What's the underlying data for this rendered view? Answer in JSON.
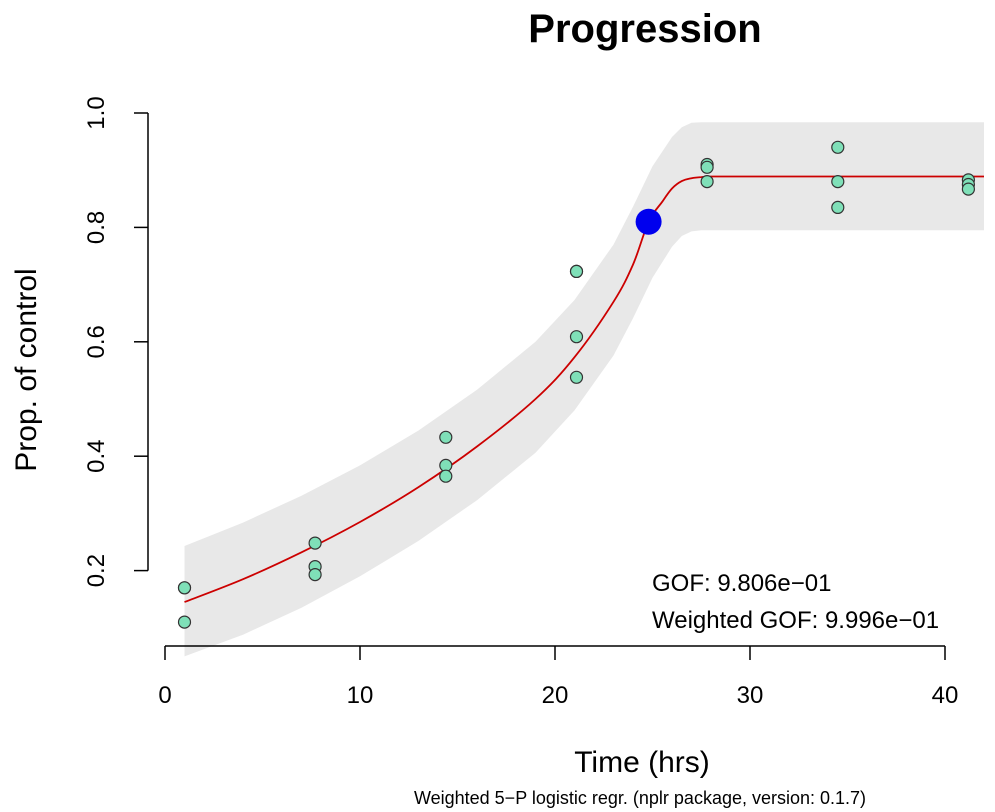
{
  "chart_data": {
    "type": "scatter",
    "title": "Progression",
    "xlabel": "Time (hrs)",
    "ylabel": "Prop. of control",
    "subtitle": "Weighted 5−P logistic regr. (nplr package, version: 0.1.7)",
    "xlim": [
      0,
      42
    ],
    "ylim": [
      0.08,
      1.0
    ],
    "x_ticks": [
      "0",
      "10",
      "20",
      "30",
      "40"
    ],
    "y_ticks": [
      "0.2",
      "0.4",
      "0.6",
      "0.8",
      "1.0"
    ],
    "grid": false,
    "points": [
      {
        "x": 1.0,
        "y": 0.17
      },
      {
        "x": 1.0,
        "y": 0.17
      },
      {
        "x": 1.0,
        "y": 0.11
      },
      {
        "x": 7.7,
        "y": 0.248
      },
      {
        "x": 7.7,
        "y": 0.207
      },
      {
        "x": 7.7,
        "y": 0.193
      },
      {
        "x": 14.4,
        "y": 0.433
      },
      {
        "x": 14.4,
        "y": 0.384
      },
      {
        "x": 14.4,
        "y": 0.365
      },
      {
        "x": 21.1,
        "y": 0.723
      },
      {
        "x": 21.1,
        "y": 0.723
      },
      {
        "x": 21.1,
        "y": 0.609
      },
      {
        "x": 21.1,
        "y": 0.538
      },
      {
        "x": 27.8,
        "y": 0.91
      },
      {
        "x": 27.8,
        "y": 0.905
      },
      {
        "x": 27.8,
        "y": 0.88
      },
      {
        "x": 34.5,
        "y": 0.94
      },
      {
        "x": 34.5,
        "y": 0.88
      },
      {
        "x": 34.5,
        "y": 0.835
      },
      {
        "x": 41.2,
        "y": 0.883
      },
      {
        "x": 41.2,
        "y": 0.875
      },
      {
        "x": 41.2,
        "y": 0.867
      }
    ],
    "fit_curve": {
      "x": [
        1,
        4,
        7,
        10,
        13,
        16,
        19,
        21,
        23,
        24,
        24.8,
        25.5,
        26,
        26.5,
        27,
        27.5,
        28,
        30,
        35,
        42
      ],
      "y": [
        0.145,
        0.185,
        0.232,
        0.285,
        0.346,
        0.417,
        0.5,
        0.573,
        0.67,
        0.735,
        0.81,
        0.845,
        0.868,
        0.881,
        0.886,
        0.888,
        0.889,
        0.889,
        0.889,
        0.889
      ]
    },
    "ci_band": {
      "x": [
        1,
        4,
        7,
        10,
        13,
        16,
        19,
        21,
        23,
        24,
        25,
        26,
        26.5,
        27,
        27.5,
        28,
        30,
        35,
        42
      ],
      "lower": [
        0.05,
        0.088,
        0.135,
        0.19,
        0.252,
        0.323,
        0.406,
        0.48,
        0.576,
        0.641,
        0.712,
        0.766,
        0.785,
        0.793,
        0.795,
        0.795,
        0.795,
        0.795,
        0.795
      ],
      "upper": [
        0.243,
        0.284,
        0.331,
        0.384,
        0.445,
        0.516,
        0.6,
        0.673,
        0.77,
        0.836,
        0.907,
        0.958,
        0.975,
        0.983,
        0.984,
        0.984,
        0.984,
        0.984,
        0.984
      ]
    },
    "highlight_point": {
      "x": 24.8,
      "y": 0.81
    },
    "annotations": [
      "GOF: 9.806e−01",
      "Weighted GOF: 9.996e−01"
    ],
    "colors": {
      "points": "#7FE0B8",
      "curve": "#CC0000",
      "band": "#E8E8E8",
      "highlight": "#0000EE"
    }
  }
}
